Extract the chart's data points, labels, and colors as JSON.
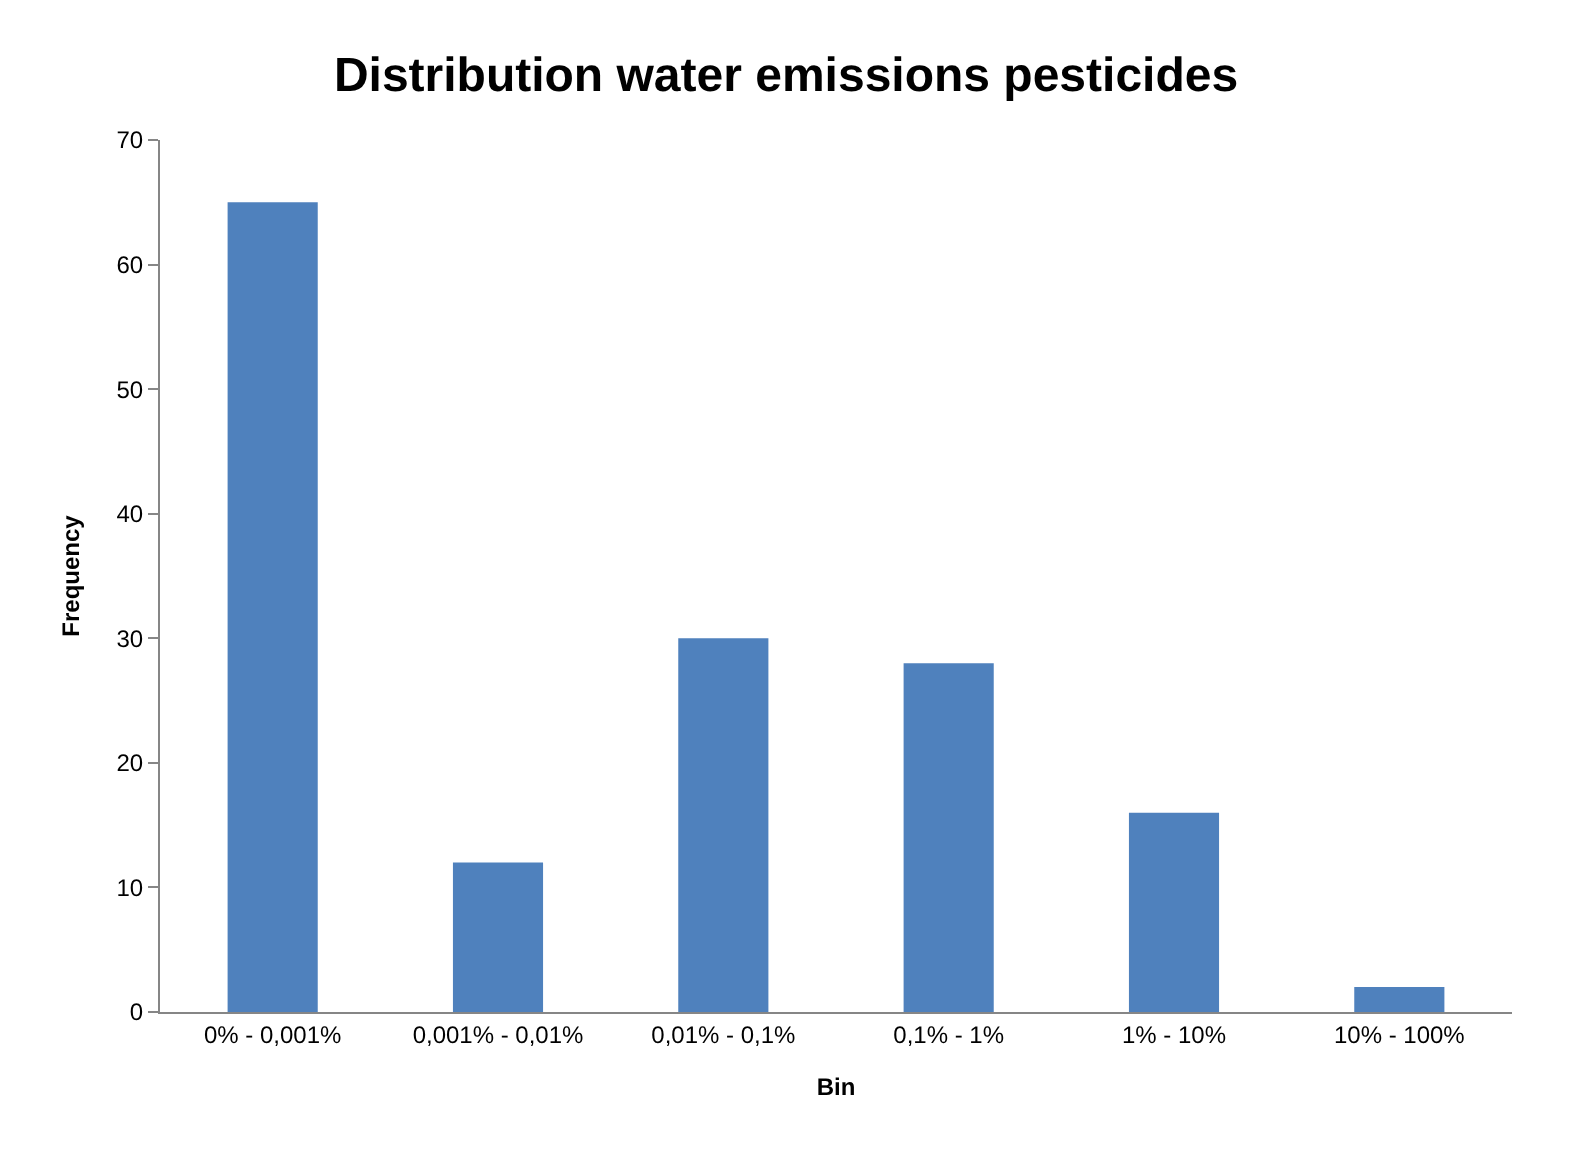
{
  "chart_data": {
    "type": "bar",
    "title": "Distribution water emissions pesticides",
    "xlabel": "Bin",
    "ylabel": "Frequency",
    "categories": [
      "0% - 0,001%",
      "0,001% - 0,01%",
      "0,01% - 0,1%",
      "0,1% - 1%",
      "1% - 10%",
      "10% - 100%"
    ],
    "values": [
      65,
      12,
      30,
      28,
      16,
      2
    ],
    "color": "#4f81bd",
    "ylim": [
      0,
      70
    ],
    "yticks": [
      0,
      10,
      20,
      30,
      40,
      50,
      60,
      70
    ]
  }
}
